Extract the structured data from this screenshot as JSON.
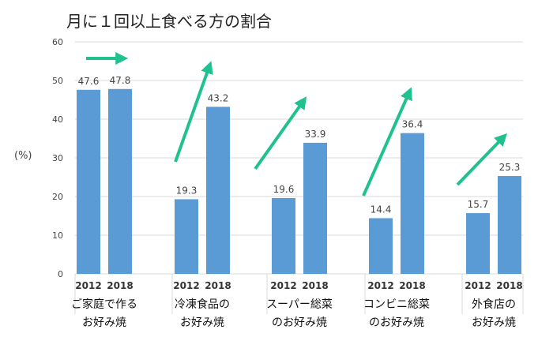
{
  "chart_data": {
    "type": "bar",
    "title": "月に１回以上食べる方の割合",
    "ylabel": "(%)",
    "ylim": [
      0,
      60
    ],
    "yticks": [
      "0",
      "10",
      "20",
      "30",
      "40",
      "50",
      "60"
    ],
    "grid": true,
    "groups": [
      {
        "label_lines": [
          "ご家庭で作る",
          "お好み焼"
        ],
        "years": [
          "2012",
          "2018"
        ],
        "values": [
          47.6,
          47.8
        ],
        "value_labels": [
          "47.6",
          "47.8"
        ]
      },
      {
        "label_lines": [
          "冷凍食品の",
          "お好み焼"
        ],
        "years": [
          "2012",
          "2018"
        ],
        "values": [
          19.3,
          43.2
        ],
        "value_labels": [
          "19.3",
          "43.2"
        ]
      },
      {
        "label_lines": [
          "スーパー総菜",
          "のお好み焼"
        ],
        "years": [
          "2012",
          "2018"
        ],
        "values": [
          19.6,
          33.9
        ],
        "value_labels": [
          "19.6",
          "33.9"
        ]
      },
      {
        "label_lines": [
          "コンビニ総菜",
          "のお好み焼"
        ],
        "years": [
          "2012",
          "2018"
        ],
        "values": [
          14.4,
          36.4
        ],
        "value_labels": [
          "14.4",
          "36.4"
        ]
      },
      {
        "label_lines": [
          "外食店の",
          "お好み焼"
        ],
        "years": [
          "2012",
          "2018"
        ],
        "values": [
          15.7,
          25.3
        ],
        "value_labels": [
          "15.7",
          "25.3"
        ]
      }
    ],
    "colors": {
      "bar": "#5b9bd5",
      "arrow": "#1fc28f",
      "grid": "#d9d9d9",
      "text": "#444444"
    }
  }
}
